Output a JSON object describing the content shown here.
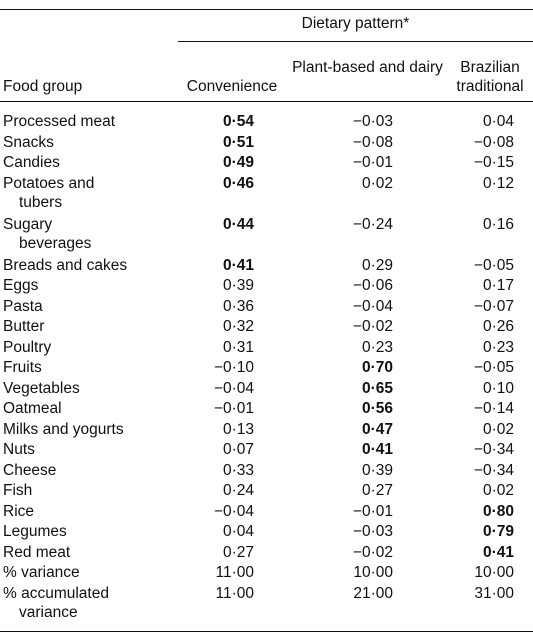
{
  "header": {
    "pattern_title": "Dietary pattern*",
    "food_group": "Food group",
    "convenience": "Convenience",
    "plant_based": "Plant-based and dairy",
    "brazilian": "Brazilian traditional"
  },
  "rows": [
    {
      "name": [
        "Processed meat"
      ],
      "convenience": "0·54",
      "plant": "−0·03",
      "brazilian": "0·04",
      "bold": "convenience"
    },
    {
      "name": [
        "Snacks"
      ],
      "convenience": "0·51",
      "plant": "−0·08",
      "brazilian": "−0·08",
      "bold": "convenience"
    },
    {
      "name": [
        "Candies"
      ],
      "convenience": "0·49",
      "plant": "−0·01",
      "brazilian": "−0·15",
      "bold": "convenience"
    },
    {
      "name": [
        "Potatoes and",
        "tubers"
      ],
      "convenience": "0·46",
      "plant": "0·02",
      "brazilian": "0·12",
      "bold": "convenience"
    },
    {
      "name": [
        "Sugary",
        "beverages"
      ],
      "convenience": "0·44",
      "plant": "−0·24",
      "brazilian": "0·16",
      "bold": "convenience"
    },
    {
      "name": [
        "Breads and cakes"
      ],
      "convenience": "0·41",
      "plant": "0·29",
      "brazilian": "−0·05",
      "bold": "convenience"
    },
    {
      "name": [
        "Eggs"
      ],
      "convenience": "0·39",
      "plant": "−0·06",
      "brazilian": "0·17",
      "bold": ""
    },
    {
      "name": [
        "Pasta"
      ],
      "convenience": "0·36",
      "plant": "−0·04",
      "brazilian": "−0·07",
      "bold": ""
    },
    {
      "name": [
        "Butter"
      ],
      "convenience": "0·32",
      "plant": "−0·02",
      "brazilian": "0·26",
      "bold": ""
    },
    {
      "name": [
        "Poultry"
      ],
      "convenience": "0·31",
      "plant": "0·23",
      "brazilian": "0·23",
      "bold": ""
    },
    {
      "name": [
        "Fruits"
      ],
      "convenience": "−0·10",
      "plant": "0·70",
      "brazilian": "−0·05",
      "bold": "plant"
    },
    {
      "name": [
        "Vegetables"
      ],
      "convenience": "−0·04",
      "plant": "0·65",
      "brazilian": "0·10",
      "bold": "plant"
    },
    {
      "name": [
        "Oatmeal"
      ],
      "convenience": "−0·01",
      "plant": "0·56",
      "brazilian": "−0·14",
      "bold": "plant"
    },
    {
      "name": [
        "Milks and yogurts"
      ],
      "convenience": "0·13",
      "plant": "0·47",
      "brazilian": "0·02",
      "bold": "plant"
    },
    {
      "name": [
        "Nuts"
      ],
      "convenience": "0·07",
      "plant": "0·41",
      "brazilian": "−0·34",
      "bold": "plant"
    },
    {
      "name": [
        "Cheese"
      ],
      "convenience": "0·33",
      "plant": "0·39",
      "brazilian": "−0·34",
      "bold": ""
    },
    {
      "name": [
        "Fish"
      ],
      "convenience": "0·24",
      "plant": "0·27",
      "brazilian": "0·02",
      "bold": ""
    },
    {
      "name": [
        "Rice"
      ],
      "convenience": "−0·04",
      "plant": "−0·01",
      "brazilian": "0·80",
      "bold": "brazilian"
    },
    {
      "name": [
        "Legumes"
      ],
      "convenience": "0·04",
      "plant": "−0·03",
      "brazilian": "0·79",
      "bold": "brazilian"
    },
    {
      "name": [
        "Red meat"
      ],
      "convenience": "0·27",
      "plant": "−0·02",
      "brazilian": "0·41",
      "bold": "brazilian"
    },
    {
      "name": [
        "% variance"
      ],
      "convenience": "11·00",
      "plant": "10·00",
      "brazilian": "10·00",
      "bold": ""
    },
    {
      "name": [
        "% accumulated",
        "variance"
      ],
      "convenience": "11·00",
      "plant": "21·00",
      "brazilian": "31·00",
      "bold": ""
    }
  ]
}
